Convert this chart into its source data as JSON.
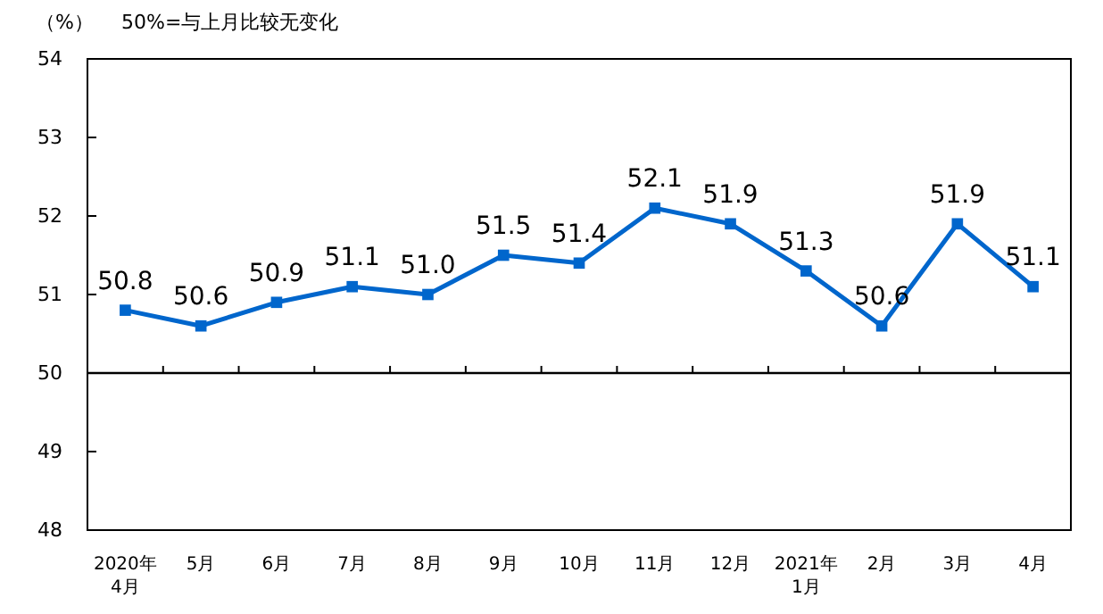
{
  "chart_data": {
    "type": "line",
    "title": "50%=与上月比较无变化",
    "ylabel": "（%）",
    "categories": [
      "2020年\n4月",
      "5月",
      "6月",
      "7月",
      "8月",
      "9月",
      "10月",
      "11月",
      "12月",
      "2021年\n1月",
      "2月",
      "3月",
      "4月"
    ],
    "series": [
      {
        "color": "#0066cc",
        "values": [
          50.8,
          50.6,
          50.9,
          51.1,
          51.0,
          51.5,
          51.4,
          52.1,
          51.9,
          51.3,
          50.6,
          51.9,
          51.1
        ],
        "value_labels": [
          "50.8",
          "50.6",
          "50.9",
          "51.1",
          "51.0",
          "51.5",
          "51.4",
          "52.1",
          "51.9",
          "51.3",
          "50.6",
          "51.9",
          "51.1"
        ]
      }
    ],
    "ylim": [
      48,
      54
    ],
    "yticks": [
      48,
      49,
      50,
      51,
      52,
      53,
      54
    ],
    "marker": "square",
    "line_style": "solid",
    "ref_lines": [
      {
        "axis": "y",
        "value": 50,
        "color": "#000000"
      }
    ]
  }
}
